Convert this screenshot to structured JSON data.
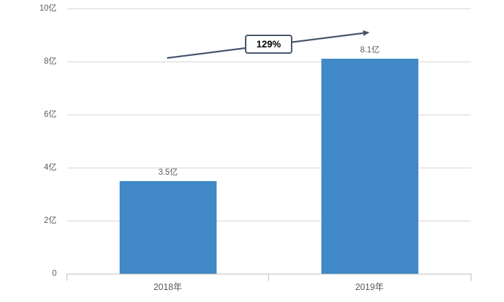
{
  "chart_data": {
    "type": "bar",
    "categories": [
      "2018年",
      "2019年"
    ],
    "values": [
      3.5,
      8.1
    ],
    "value_labels": [
      "3.5亿",
      "8.1亿"
    ],
    "y_ticks": [
      "10亿",
      "8亿",
      "6亿",
      "4亿",
      "2亿",
      "0"
    ],
    "ylim": [
      0,
      10
    ],
    "grid": true,
    "title": "",
    "xlabel": "",
    "ylabel": "",
    "legend": "none",
    "annotation": {
      "text": "129%"
    },
    "colors": {
      "bar": "#418ac7",
      "arrow": "#44546a",
      "gridline": "#d6d6d6",
      "axis": "#bfbfbf",
      "label_text": "#595959",
      "annotation_border": "#44546a",
      "annotation_text": "#000000"
    }
  }
}
